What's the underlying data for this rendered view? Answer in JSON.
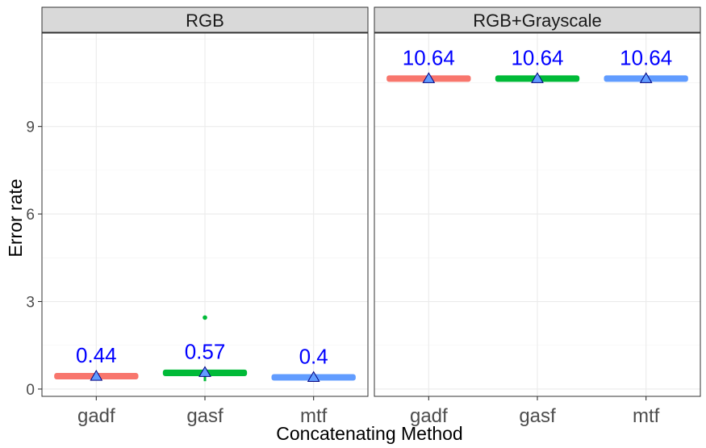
{
  "chart_data": {
    "type": "boxplot",
    "xlabel": "Concatenating Method",
    "ylabel": "Error rate",
    "ylim": [
      -0.25,
      12.2
    ],
    "y_ticks": [
      0,
      3,
      6,
      9
    ],
    "y_tick_labels": [
      "0",
      "3",
      "6",
      "9"
    ],
    "categories": [
      "gadf",
      "gasf",
      "mtf"
    ],
    "colors": {
      "gadf": "#F8766D",
      "gasf": "#00BA38",
      "mtf": "#619CFF",
      "mean_label": "#0000FF",
      "mean_marker_fill": "#619CFF"
    },
    "legend": "none",
    "grid": true,
    "facets": [
      {
        "name": "RGB",
        "boxes": [
          {
            "category": "gadf",
            "q1": 0.38,
            "median": 0.44,
            "q3": 0.5,
            "whisker_low": 0.38,
            "whisker_high": 0.5,
            "mean": 0.44,
            "mean_label": "0.44",
            "outliers": []
          },
          {
            "category": "gasf",
            "q1": 0.47,
            "median": 0.54,
            "q3": 0.64,
            "whisker_low": 0.27,
            "whisker_high": 0.64,
            "mean": 0.57,
            "mean_label": "0.57",
            "outliers": [
              2.45
            ]
          },
          {
            "category": "mtf",
            "q1": 0.36,
            "median": 0.4,
            "q3": 0.44,
            "whisker_low": 0.36,
            "whisker_high": 0.44,
            "mean": 0.4,
            "mean_label": "0.4",
            "outliers": []
          }
        ]
      },
      {
        "name": "RGB+Grayscale",
        "boxes": [
          {
            "category": "gadf",
            "q1": 10.6,
            "median": 10.64,
            "q3": 10.68,
            "whisker_low": 10.6,
            "whisker_high": 10.68,
            "mean": 10.64,
            "mean_label": "10.64",
            "outliers": []
          },
          {
            "category": "gasf",
            "q1": 10.6,
            "median": 10.64,
            "q3": 10.68,
            "whisker_low": 10.6,
            "whisker_high": 10.68,
            "mean": 10.64,
            "mean_label": "10.64",
            "outliers": []
          },
          {
            "category": "mtf",
            "q1": 10.6,
            "median": 10.64,
            "q3": 10.68,
            "whisker_low": 10.6,
            "whisker_high": 10.68,
            "mean": 10.64,
            "mean_label": "10.64",
            "outliers": []
          }
        ]
      }
    ]
  }
}
